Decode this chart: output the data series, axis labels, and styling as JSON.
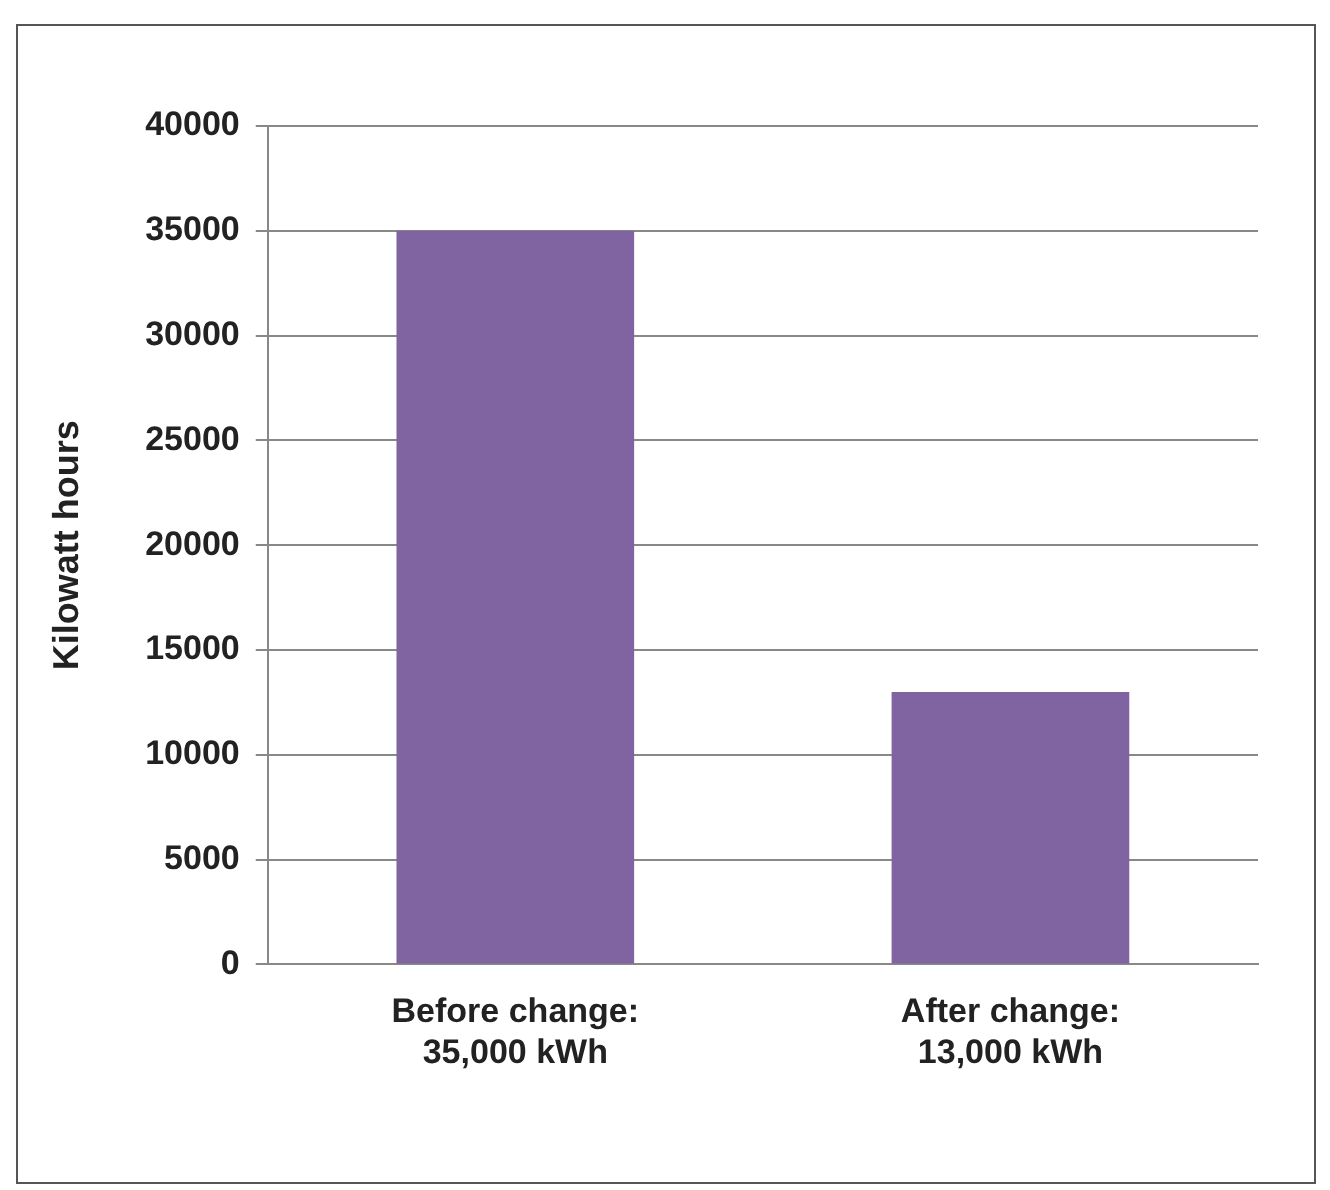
{
  "chart_data": {
    "type": "bar",
    "ylabel": "Kilowatt hours",
    "categories": [
      "Before change:\n35,000 kWh",
      "After change:\n13,000 kWh"
    ],
    "values": [
      35000,
      13000
    ],
    "color": "#8064a2",
    "ylim": [
      0,
      40000
    ],
    "yticks": [
      0,
      5000,
      10000,
      15000,
      20000,
      25000,
      30000,
      35000,
      40000
    ],
    "grid": "y",
    "legend": false
  }
}
